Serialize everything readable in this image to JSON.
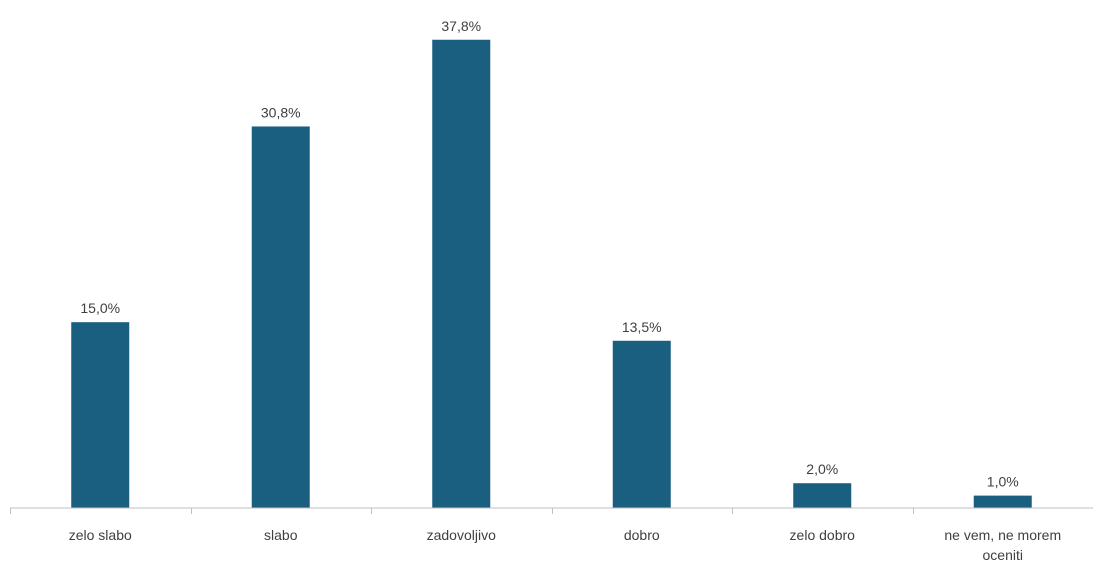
{
  "chart_data": {
    "type": "bar",
    "categories": [
      [
        "zelo slabo"
      ],
      [
        "slabo"
      ],
      [
        "zadovoljivo"
      ],
      [
        "dobro"
      ],
      [
        "zelo dobro"
      ],
      [
        "ne vem, ne morem",
        "oceniti"
      ]
    ],
    "values": [
      15.0,
      30.8,
      37.8,
      13.5,
      2.0,
      1.0
    ],
    "value_labels": [
      "15,0%",
      "30,8%",
      "37,8%",
      "13,5%",
      "2,0%",
      "1,0%"
    ],
    "unit": "%",
    "ylim": [
      0,
      40
    ],
    "grid": false,
    "legend": "none",
    "colors": {
      "bar": "#1a5f80",
      "axis": "#bfbfbf",
      "text": "#404040"
    }
  }
}
